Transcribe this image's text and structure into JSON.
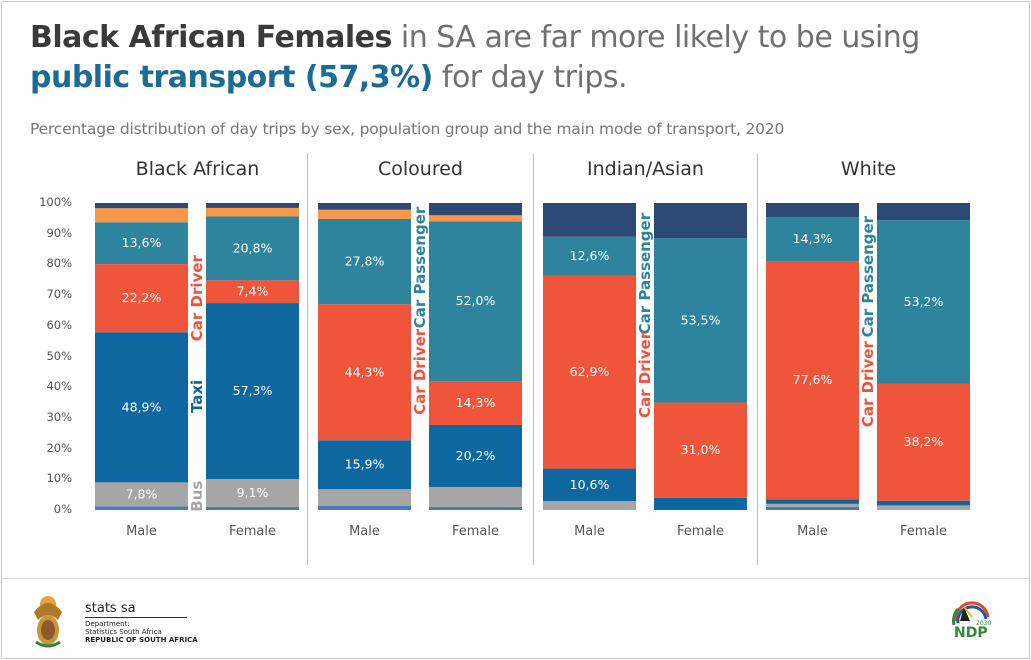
{
  "headline": {
    "part1_bold": "Black African Females",
    "part2": " in SA are far more likely to be using ",
    "part3_accent": "public transport (57,3%)",
    "part4": " for day trips."
  },
  "subtitle": "Percentage distribution of day trips by sex, population group and the main mode of transport, 2020",
  "colors": {
    "train": "#4a7bb8",
    "bus": "#a6a6a6",
    "taxi": "#0f67a0",
    "car_driver": "#ef553b",
    "car_passenger": "#2e849c",
    "walking": "#f5984a",
    "other": "#2c4a75"
  },
  "chart_data": {
    "type": "bar",
    "stacked": true,
    "title": "Percentage distribution of day trips by sex, population group and the main mode of transport, 2020",
    "ylim": [
      0,
      100
    ],
    "yticks": [
      "0%",
      "10%",
      "20%",
      "30%",
      "40%",
      "50%",
      "60%",
      "70%",
      "80%",
      "90%",
      "100%"
    ],
    "segment_order": [
      "train",
      "bus",
      "taxi",
      "car_driver",
      "car_passenger",
      "walking",
      "other"
    ],
    "groups": [
      {
        "name": "Black African",
        "bars": [
          {
            "label": "Male",
            "values": {
              "train": 1.2,
              "bus": 7.8,
              "taxi": 48.9,
              "car_driver": 22.2,
              "car_passenger": 13.6,
              "walking": 4.6,
              "other": 1.7
            },
            "labels": {
              "bus": "7,8%",
              "taxi": "48,9%",
              "car_driver": "22,2%",
              "car_passenger": "13,6%"
            }
          },
          {
            "label": "Female",
            "values": {
              "train": 1.0,
              "bus": 9.1,
              "taxi": 57.3,
              "car_driver": 7.4,
              "car_passenger": 20.8,
              "walking": 2.8,
              "other": 1.6
            },
            "labels": {
              "bus": "9,1%",
              "taxi": "57,3%",
              "car_driver": "7,4%",
              "car_passenger": "20,8%"
            }
          }
        ],
        "vertical_labels": [
          {
            "text": "Car Driver",
            "mode": "car_driver",
            "center": 69
          },
          {
            "text": "Taxi",
            "mode": "taxi",
            "center": 37
          },
          {
            "text": "Bus",
            "mode": "bus",
            "center": 4.5
          }
        ]
      },
      {
        "name": "Coloured",
        "bars": [
          {
            "label": "Male",
            "values": {
              "train": 1.3,
              "bus": 5.5,
              "taxi": 15.9,
              "car_driver": 44.3,
              "car_passenger": 27.8,
              "walking": 3.0,
              "other": 2.2
            },
            "labels": {
              "taxi": "15,9%",
              "car_driver": "44,3%",
              "car_passenger": "27,8%"
            }
          },
          {
            "label": "Female",
            "values": {
              "train": 1.0,
              "bus": 6.5,
              "taxi": 20.2,
              "car_driver": 14.3,
              "car_passenger": 52.0,
              "walking": 2.0,
              "other": 4.0
            },
            "labels": {
              "taxi": "20,2%",
              "car_driver": "14,3%",
              "car_passenger": "52,0%"
            }
          }
        ],
        "vertical_labels": [
          {
            "text": "Car Passenger",
            "mode": "car_passenger",
            "center": 79
          },
          {
            "text": "Car Driver",
            "mode": "car_driver",
            "center": 45
          }
        ]
      },
      {
        "name": "Indian/Asian",
        "bars": [
          {
            "label": "Male",
            "values": {
              "train": 0,
              "bus": 2.9,
              "taxi": 10.6,
              "car_driver": 62.9,
              "car_passenger": 12.6,
              "walking": 0,
              "other": 11.0
            },
            "labels": {
              "taxi": "10,6%",
              "car_driver": "62,9%",
              "car_passenger": "12,6%"
            }
          },
          {
            "label": "Female",
            "values": {
              "train": 0,
              "bus": 0,
              "taxi": 4.0,
              "car_driver": 31.0,
              "car_passenger": 53.5,
              "walking": 0,
              "other": 11.5
            },
            "labels": {
              "car_driver": "31,0%",
              "car_passenger": "53,5%"
            }
          }
        ],
        "vertical_labels": [
          {
            "text": "Car Passenger",
            "mode": "car_passenger",
            "center": 77
          },
          {
            "text": "Car Driver",
            "mode": "car_driver",
            "center": 44
          }
        ]
      },
      {
        "name": "White",
        "bars": [
          {
            "label": "Male",
            "values": {
              "train": 1.0,
              "bus": 1.0,
              "taxi": 1.5,
              "car_driver": 77.6,
              "car_passenger": 14.3,
              "walking": 0,
              "other": 4.6
            },
            "labels": {
              "car_driver": "77,6%",
              "car_passenger": "14,3%"
            }
          },
          {
            "label": "Female",
            "values": {
              "train": 0,
              "bus": 1.5,
              "taxi": 1.5,
              "car_driver": 38.2,
              "car_passenger": 53.2,
              "walking": 0,
              "other": 5.6
            },
            "labels": {
              "car_driver": "38,2%",
              "car_passenger": "53,2%"
            }
          }
        ],
        "vertical_labels": [
          {
            "text": "Car Passenger",
            "mode": "car_passenger",
            "center": 76
          },
          {
            "text": "Car Driver",
            "mode": "car_driver",
            "center": 41
          }
        ]
      }
    ]
  },
  "footer": {
    "org_name": "stats sa",
    "dept_line1": "Department:",
    "dept_line2": "Statistics South Africa",
    "dept_line3": "REPUBLIC OF SOUTH AFRICA",
    "ndp_year": "2030",
    "ndp_text": "NDP"
  }
}
